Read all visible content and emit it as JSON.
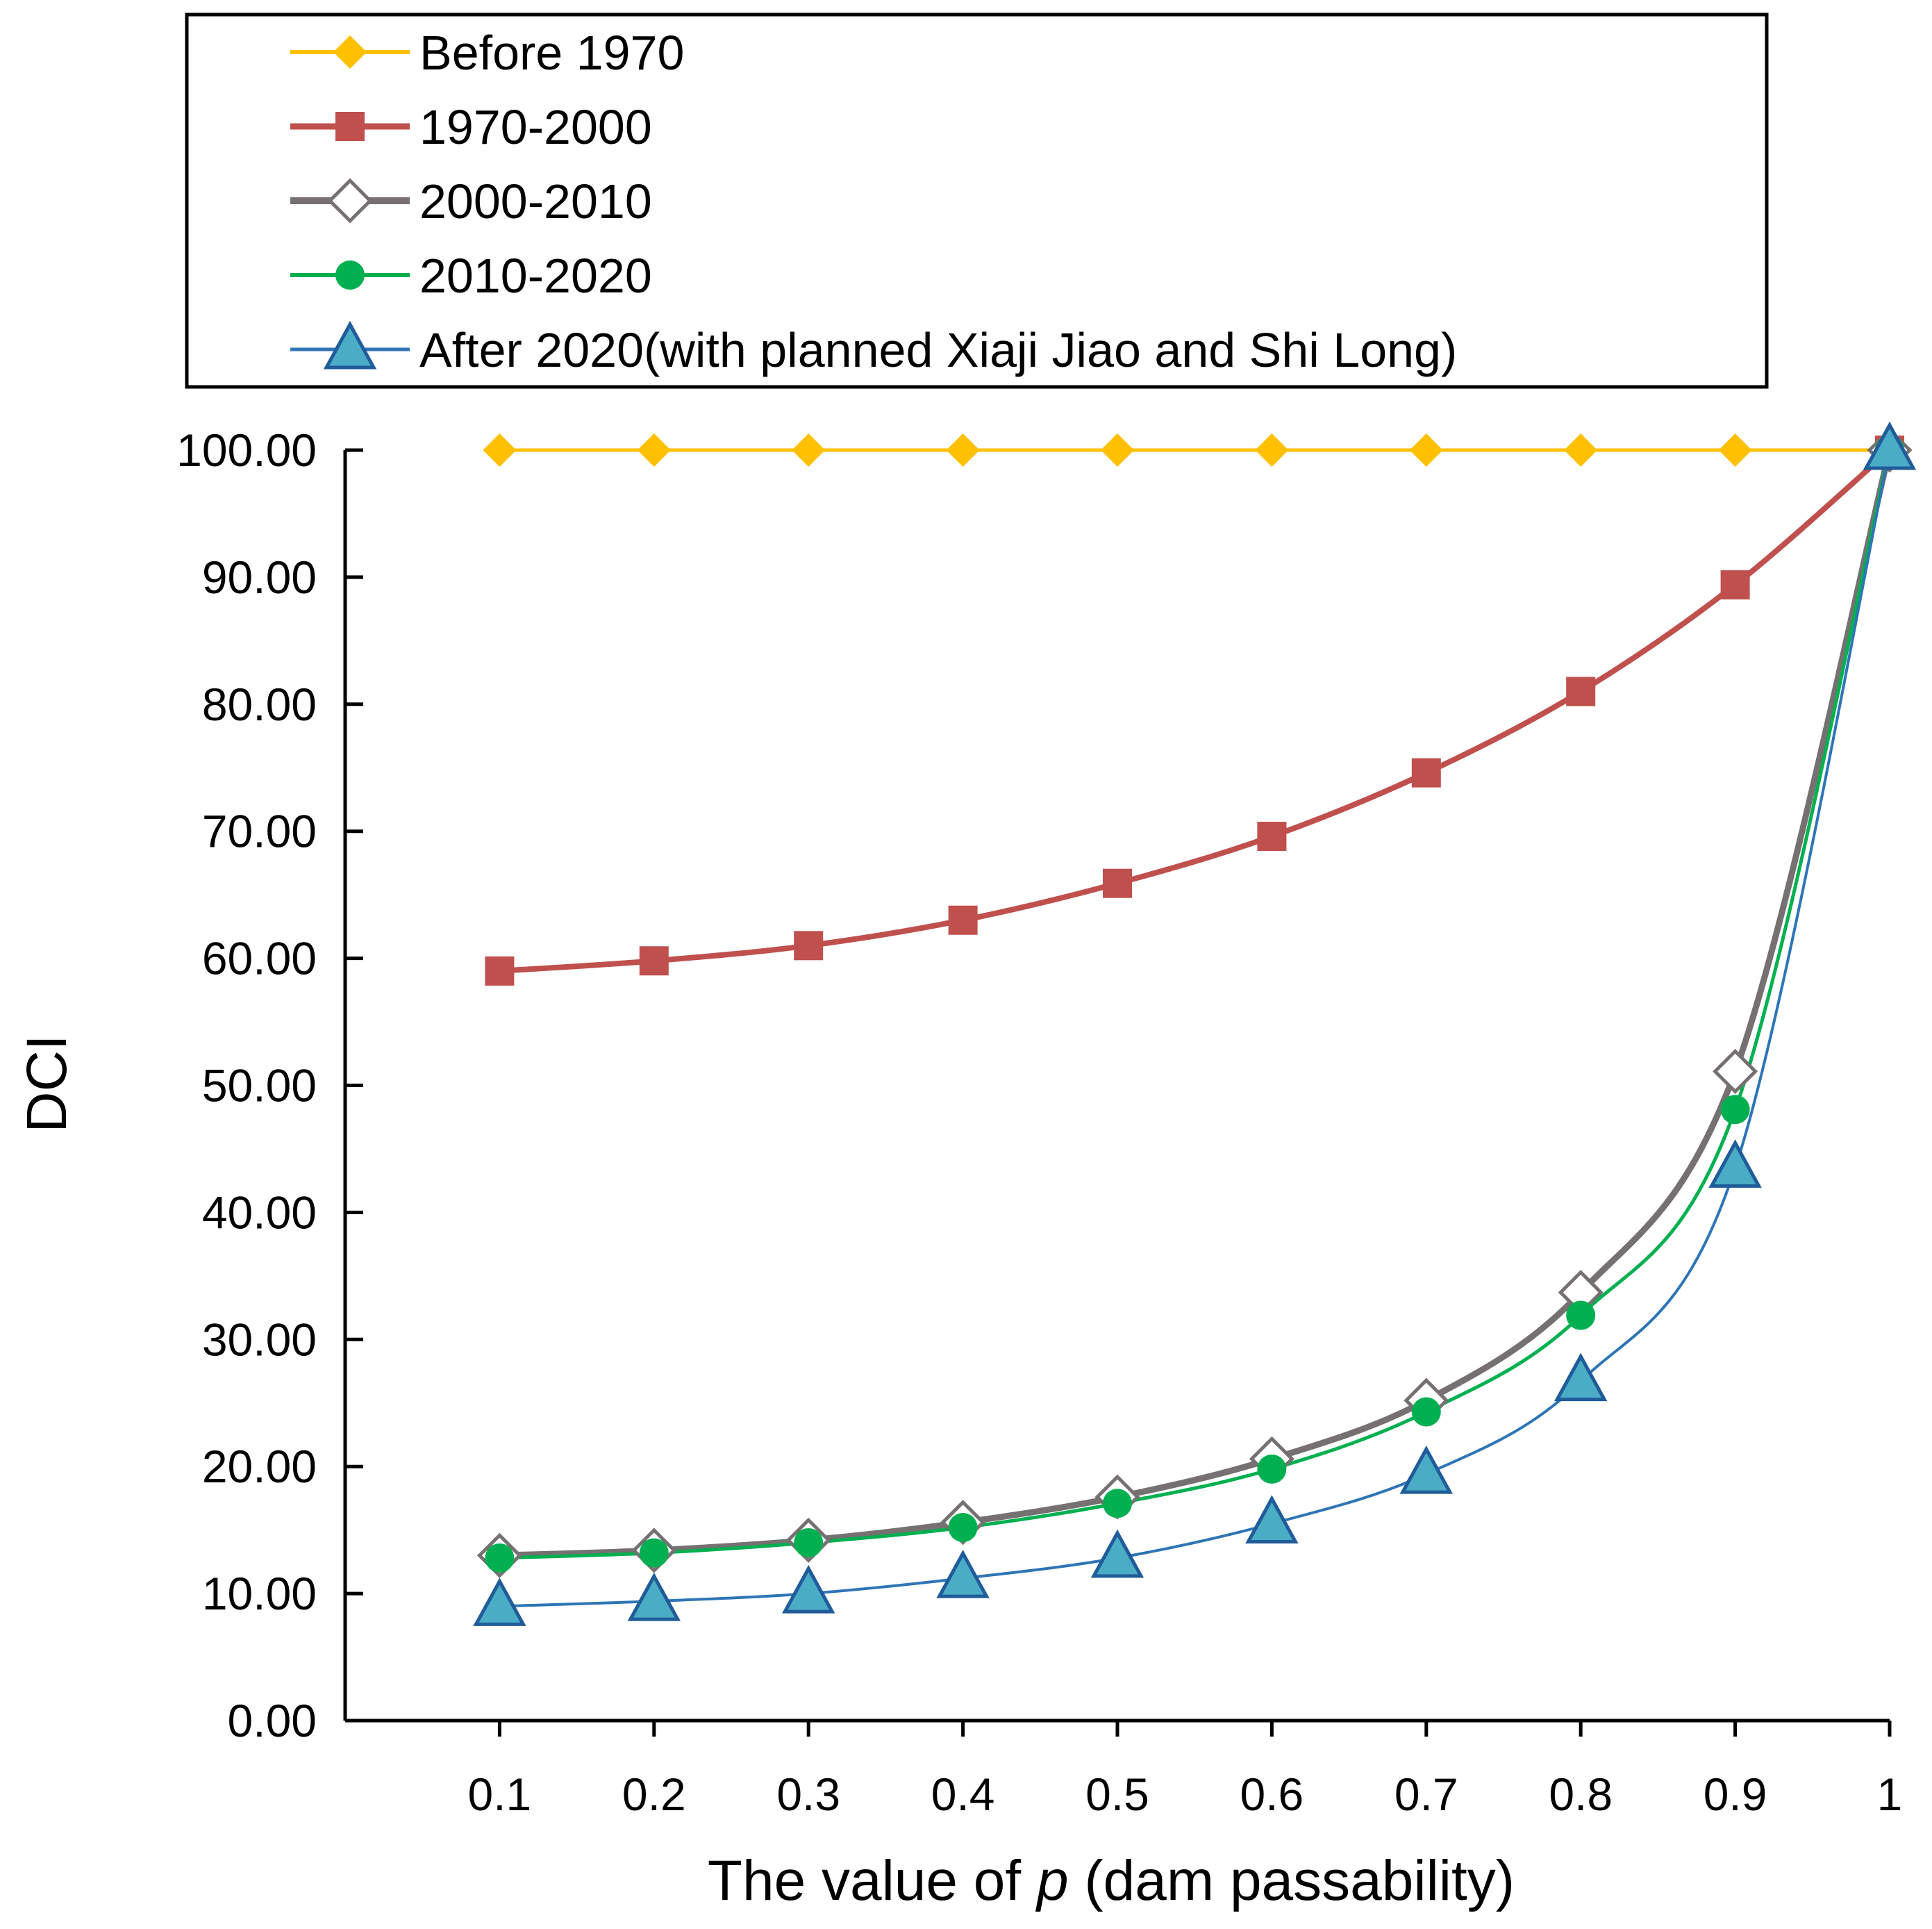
{
  "chart_data": {
    "type": "line",
    "title": "",
    "xlabel_prefix": "The value of ",
    "xlabel_var": "p",
    "xlabel_suffix": " (dam passability)",
    "ylabel": "DCI",
    "categories": [
      "0.1",
      "0.2",
      "0.3",
      "0.4",
      "0.5",
      "0.6",
      "0.7",
      "0.8",
      "0.9",
      "1"
    ],
    "x": [
      0.1,
      0.2,
      0.3,
      0.4,
      0.5,
      0.6,
      0.7,
      0.8,
      0.9,
      1.0
    ],
    "ylim": [
      0,
      100
    ],
    "xlim": [
      0,
      1
    ],
    "yticks": [
      "0.00",
      "10.00",
      "20.00",
      "30.00",
      "40.00",
      "50.00",
      "60.00",
      "70.00",
      "80.00",
      "90.00",
      "100.00"
    ],
    "legend_position": "top",
    "series": [
      {
        "name": "Before 1970",
        "color": "#FFC000",
        "marker": "diamond-filled",
        "values": [
          100,
          100,
          100,
          100,
          100,
          100,
          100,
          100,
          100,
          100
        ]
      },
      {
        "name": "1970-2000",
        "color": "#C0504D",
        "marker": "square",
        "values": [
          59.0,
          59.8,
          61.0,
          63.0,
          65.9,
          69.6,
          74.6,
          81.0,
          89.4,
          100
        ]
      },
      {
        "name": "2000-2010",
        "color": "#767171",
        "marker": "diamond-open",
        "values": [
          13.0,
          13.4,
          14.2,
          15.6,
          17.6,
          20.6,
          25.2,
          33.7,
          51.1,
          100
        ]
      },
      {
        "name": "2010-2020",
        "color": "#00B050",
        "marker": "circle",
        "values": [
          12.8,
          13.2,
          14.0,
          15.2,
          17.1,
          19.8,
          24.3,
          31.9,
          48.1,
          100
        ]
      },
      {
        "name": "After 2020(with planned Xiaji Jiao and Shi Long)",
        "color": "#2E75B6",
        "marker": "triangle",
        "values": [
          9.0,
          9.4,
          10.0,
          11.2,
          12.8,
          15.5,
          19.4,
          26.7,
          43.5,
          100
        ]
      }
    ]
  }
}
